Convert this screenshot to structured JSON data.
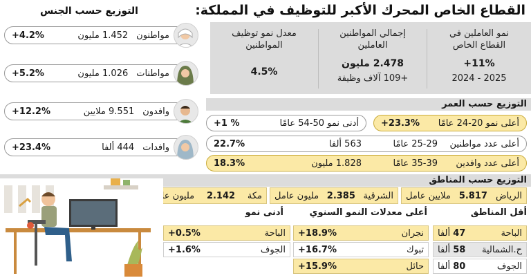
{
  "title": "القطاع الخاص المحرك الأكبر للتوظيف في المملكة:",
  "stats": [
    {
      "label1": "نمو العاملين في",
      "label2": "القطاع الخاص",
      "value": "+11%",
      "sub": "2024 - 2025"
    },
    {
      "label1": "إجمالي المواطنين",
      "label2": "العاملين",
      "value": "2.478 مليون",
      "sub": "+109 آلاف وظيفة"
    },
    {
      "label1": "معدل نمو توظيف",
      "label2": "المواطنين",
      "value": "4.5%"
    }
  ],
  "gender": {
    "title": "التوزيع حسب الجنس",
    "items": [
      {
        "name": "مواطنون",
        "amount": "1.452 مليون",
        "pct": "+4.2%"
      },
      {
        "name": "مواطنات",
        "amount": "1.026 مليون",
        "pct": "+5.2%"
      },
      {
        "name": "وافدون",
        "amount": "9.551 ملايين",
        "pct": "+12.2%"
      },
      {
        "name": "وافدات",
        "amount": "444 ألفا",
        "pct": "+23.4%"
      }
    ]
  },
  "age": {
    "title": "التوزيع حسب العمر",
    "r1_label": "أعلى نمو 20-24 عامًا",
    "r1_value": "+23.3%",
    "r1b_label": "أدنى نمو 50-54 عامًا",
    "r1b_value": "+1 %",
    "r2_label": "أعلى عدد مواطنين",
    "r2_range": "25-29 عامًا",
    "r2_amount": "563 ألفا",
    "r2_pct": "22.7%",
    "r3_label": "أعلى عدد  وافدين",
    "r3_range": "35-39 عامًا",
    "r3_amount": "1.828 مليون",
    "r3_pct": "18.3%"
  },
  "regions": {
    "title": "التوزيع حسب المناطق",
    "top": [
      {
        "name": "الرياض",
        "value": "5.817",
        "unit": "ملايين عامل"
      },
      {
        "name": "الشرقية",
        "value": "2.385",
        "unit": "مليون عامل"
      },
      {
        "name": "مكة",
        "value": "2.142",
        "unit": "مليون عامل"
      }
    ],
    "least_title": "أقل المناطق",
    "least": [
      {
        "name": "الباحة",
        "value": "47",
        "unit": "ألفا"
      },
      {
        "name": "ح.الشمالية",
        "value": "58",
        "unit": "ألفا"
      },
      {
        "name": "الجوف",
        "value": "80",
        "unit": "ألفا"
      }
    ],
    "highest_title": "أعلى معدلات النمو السنوي",
    "highest": [
      {
        "name": "نجران",
        "pct": "+18.9%"
      },
      {
        "name": "تبوك",
        "pct": "+16.7%"
      },
      {
        "name": "حائل",
        "pct": "+15.9%"
      }
    ],
    "lowest_title": "أدنى نمو",
    "lowest": [
      {
        "name": "الباحة",
        "pct": "+0.5%"
      },
      {
        "name": "الجوف",
        "pct": "+1.6%"
      }
    ]
  }
}
